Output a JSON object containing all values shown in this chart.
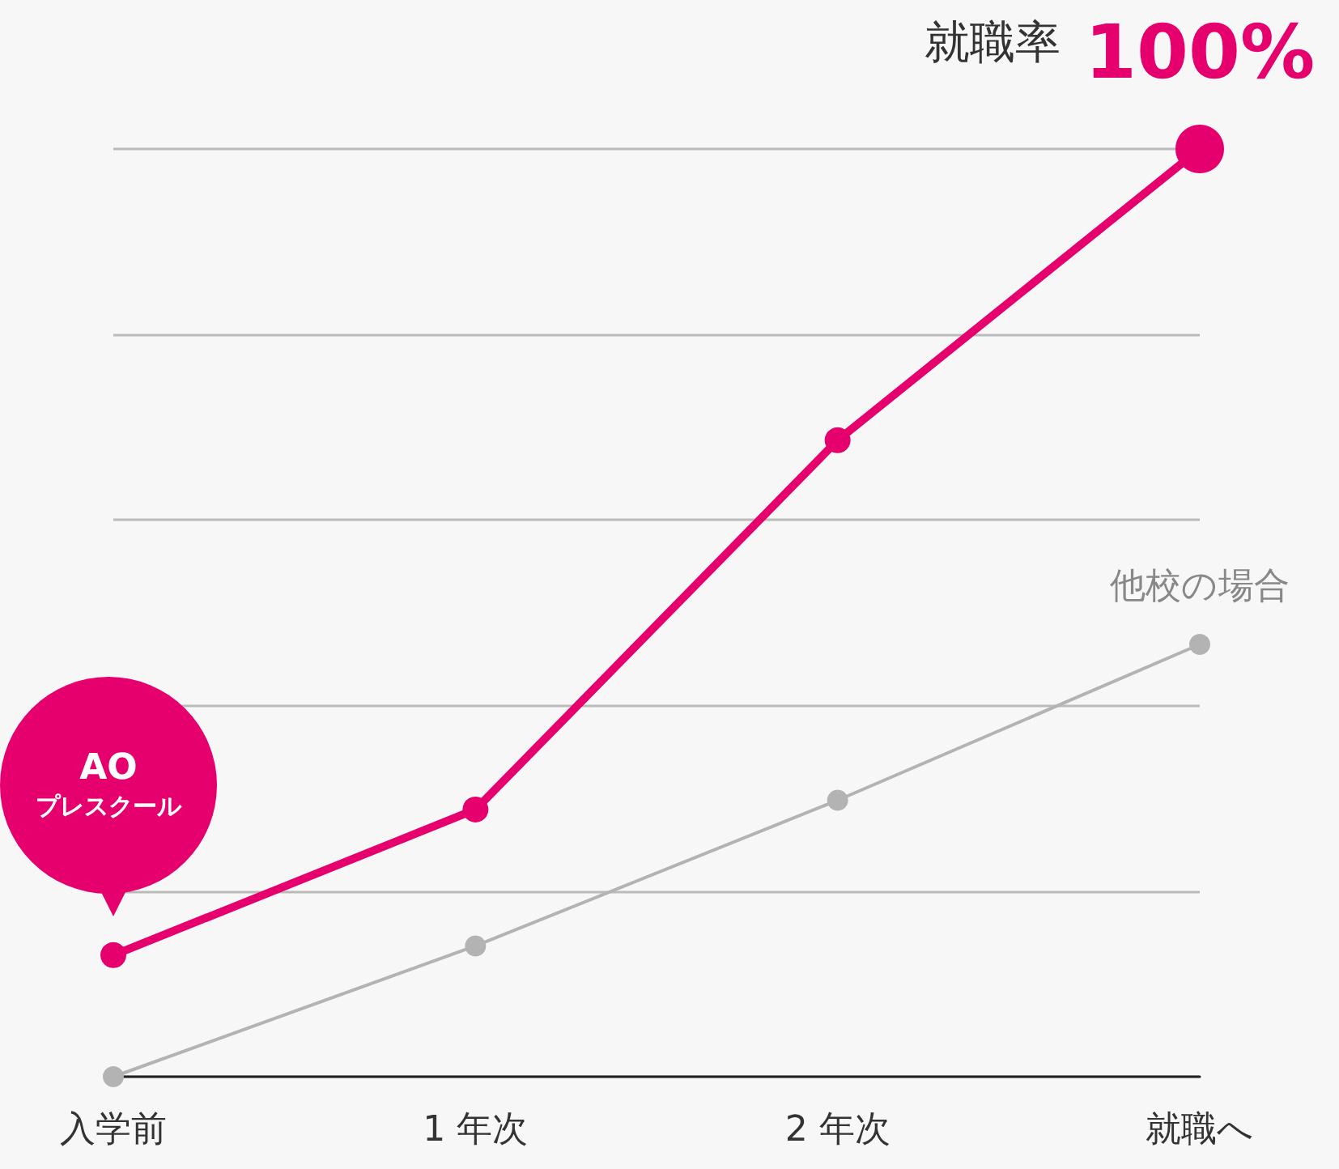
{
  "chart_data": {
    "type": "line",
    "categories": [
      "入学前",
      "1 年次",
      "2 年次",
      "就職へ"
    ],
    "series": [
      {
        "name": "他校の場合",
        "color": "#b3b3b3",
        "values": [
          0,
          14.1,
          29.8,
          46.6
        ]
      },
      {
        "name": "AO プレスクール",
        "color": "#e5006e",
        "values": [
          13.1,
          28.8,
          68.6,
          100
        ],
        "value_labels": [
          null,
          null,
          null,
          "100%"
        ]
      }
    ],
    "ylim": [
      0,
      100
    ],
    "yticks": [
      {
        "value": 0,
        "label": null
      },
      {
        "value": 20,
        "label": null
      },
      {
        "value": 40,
        "label": null
      },
      {
        "value": 60,
        "label": null
      },
      {
        "value": 80,
        "label": null
      },
      {
        "value": 100,
        "label": null
      }
    ],
    "annotations": [
      "就職率"
    ],
    "grid": "y",
    "marker": "circle",
    "line_style": "solid",
    "legend": false
  }
}
